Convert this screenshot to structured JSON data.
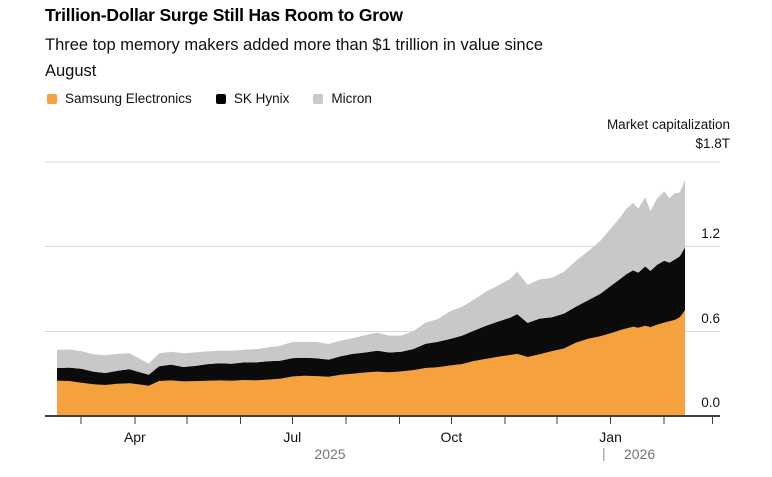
{
  "header": {
    "title": "Trillion-Dollar Surge Still Has Room to Grow",
    "subtitle_line1": "Three top memory makers added more than $1 trillion in value since",
    "subtitle_line2": "August"
  },
  "legend": [
    {
      "label": "Samsung Electronics",
      "color": "#F5A13D"
    },
    {
      "label": "SK Hynix",
      "color": "#000000"
    },
    {
      "label": "Micron",
      "color": "#C8C8C8"
    }
  ],
  "axis": {
    "y_title": "Market capitalization",
    "y_top_label": "$1.8T",
    "y_tick_labels": [
      "1.2",
      "0.6",
      "0.0"
    ],
    "x_labeled_ticks": [
      {
        "label": "Apr",
        "month": "2025-04-01"
      },
      {
        "label": "Jul",
        "month": "2025-07-01"
      },
      {
        "label": "Oct",
        "month": "2025-10-01"
      },
      {
        "label": "Jan",
        "month": "2026-01-01"
      }
    ],
    "year_left": "2025",
    "year_divider": "|",
    "year_right": "2026"
  },
  "chart_data": {
    "type": "area",
    "stacked": true,
    "title": "Trillion-Dollar Surge Still Has Room to Grow",
    "subtitle": "Three top memory makers added more than $1 trillion in value since August",
    "ylabel": "Market capitalization ($T)",
    "unit": "$T",
    "ylim": [
      0,
      1.8
    ],
    "gridlines": [
      0.6,
      1.2,
      1.8
    ],
    "grid_on": true,
    "legend_position": "top-left",
    "x_tick_months": [
      "2025-03-01",
      "2025-04-01",
      "2025-05-01",
      "2025-06-01",
      "2025-07-01",
      "2025-08-01",
      "2025-09-01",
      "2025-10-01",
      "2025-11-01",
      "2025-12-01",
      "2026-01-01",
      "2026-02-01",
      "2026-03-01"
    ],
    "x": [
      "2025-02-15",
      "2025-02-22",
      "2025-03-01",
      "2025-03-08",
      "2025-03-15",
      "2025-03-22",
      "2025-03-29",
      "2025-04-05",
      "2025-04-09",
      "2025-04-15",
      "2025-04-22",
      "2025-04-29",
      "2025-05-06",
      "2025-05-13",
      "2025-05-20",
      "2025-05-27",
      "2025-06-03",
      "2025-06-10",
      "2025-06-17",
      "2025-06-24",
      "2025-07-01",
      "2025-07-08",
      "2025-07-15",
      "2025-07-22",
      "2025-07-29",
      "2025-08-05",
      "2025-08-12",
      "2025-08-19",
      "2025-08-26",
      "2025-09-02",
      "2025-09-09",
      "2025-09-16",
      "2025-09-23",
      "2025-09-30",
      "2025-10-07",
      "2025-10-14",
      "2025-10-21",
      "2025-10-28",
      "2025-11-04",
      "2025-11-08",
      "2025-11-14",
      "2025-11-21",
      "2025-11-28",
      "2025-12-05",
      "2025-12-12",
      "2025-12-19",
      "2025-12-26",
      "2026-01-02",
      "2026-01-07",
      "2026-01-10",
      "2026-01-14",
      "2026-01-17",
      "2026-01-21",
      "2026-01-24",
      "2026-01-28",
      "2026-02-01",
      "2026-02-04",
      "2026-02-07",
      "2026-02-10",
      "2026-02-13"
    ],
    "series": [
      {
        "name": "Samsung Electronics",
        "color": "#F5A13D",
        "values": [
          0.25,
          0.248,
          0.235,
          0.225,
          0.22,
          0.228,
          0.232,
          0.222,
          0.215,
          0.248,
          0.252,
          0.245,
          0.247,
          0.25,
          0.252,
          0.25,
          0.255,
          0.252,
          0.258,
          0.264,
          0.28,
          0.285,
          0.283,
          0.278,
          0.292,
          0.3,
          0.308,
          0.315,
          0.31,
          0.316,
          0.325,
          0.34,
          0.345,
          0.358,
          0.368,
          0.39,
          0.405,
          0.42,
          0.432,
          0.44,
          0.418,
          0.438,
          0.46,
          0.478,
          0.52,
          0.548,
          0.565,
          0.59,
          0.61,
          0.62,
          0.632,
          0.626,
          0.64,
          0.63,
          0.648,
          0.662,
          0.672,
          0.68,
          0.7,
          0.75
        ]
      },
      {
        "name": "SK Hynix",
        "color": "#0B0B0B",
        "values": [
          0.09,
          0.095,
          0.1,
          0.09,
          0.085,
          0.092,
          0.1,
          0.085,
          0.078,
          0.105,
          0.112,
          0.102,
          0.108,
          0.118,
          0.122,
          0.12,
          0.125,
          0.128,
          0.13,
          0.128,
          0.13,
          0.128,
          0.126,
          0.122,
          0.132,
          0.14,
          0.142,
          0.148,
          0.14,
          0.14,
          0.15,
          0.172,
          0.18,
          0.188,
          0.2,
          0.215,
          0.235,
          0.25,
          0.265,
          0.282,
          0.242,
          0.252,
          0.24,
          0.248,
          0.255,
          0.272,
          0.3,
          0.34,
          0.365,
          0.385,
          0.4,
          0.39,
          0.42,
          0.398,
          0.425,
          0.438,
          0.415,
          0.428,
          0.432,
          0.445
        ]
      },
      {
        "name": "Micron",
        "color": "#C8C8C8",
        "values": [
          0.13,
          0.128,
          0.125,
          0.122,
          0.125,
          0.12,
          0.112,
          0.09,
          0.078,
          0.092,
          0.09,
          0.098,
          0.096,
          0.09,
          0.088,
          0.092,
          0.09,
          0.094,
          0.098,
          0.105,
          0.115,
          0.112,
          0.116,
          0.11,
          0.11,
          0.112,
          0.122,
          0.128,
          0.118,
          0.114,
          0.125,
          0.15,
          0.16,
          0.195,
          0.205,
          0.22,
          0.24,
          0.255,
          0.275,
          0.3,
          0.27,
          0.278,
          0.28,
          0.296,
          0.325,
          0.348,
          0.375,
          0.41,
          0.44,
          0.462,
          0.478,
          0.452,
          0.49,
          0.425,
          0.47,
          0.492,
          0.455,
          0.47,
          0.452,
          0.48
        ]
      }
    ]
  }
}
